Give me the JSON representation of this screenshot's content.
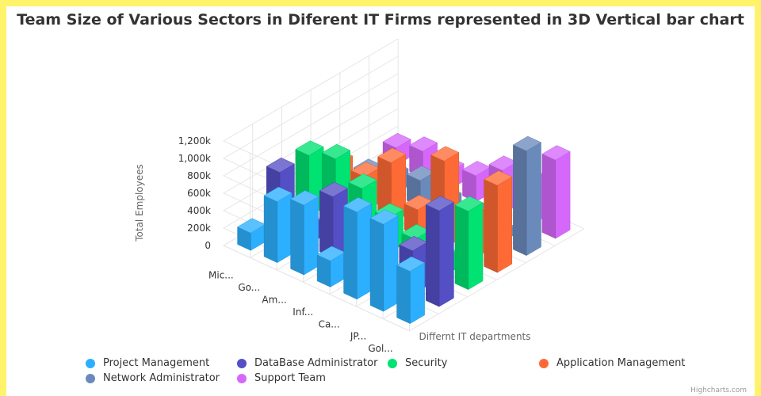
{
  "chart_data": {
    "type": "bar",
    "title": "Team Size of Various Sectors in Diferent IT Firms represented in 3D Vertical bar chart",
    "xlabel": "",
    "ylabel": "Total Employees",
    "zlabel": "Differnt IT departments",
    "ylim": [
      0,
      1200000
    ],
    "yticks": [
      "0",
      "200k",
      "400k",
      "600k",
      "800k",
      "1,000k",
      "1,200k"
    ],
    "categories": [
      "Mic...",
      "Go...",
      "Am...",
      "Inf...",
      "Ca...",
      "JP...",
      "Gol..."
    ],
    "series": [
      {
        "name": "Project Management",
        "color": "#2caffe",
        "values": [
          200000,
          700000,
          800000,
          300000,
          1000000,
          1000000,
          600000
        ]
      },
      {
        "name": "DataBase Administrator",
        "color": "#544fc5",
        "values": [
          700000,
          200000,
          700000,
          400000,
          100000,
          500000,
          1100000
        ]
      },
      {
        "name": "Security",
        "color": "#00e272",
        "values": [
          700000,
          800000,
          600000,
          400000,
          300000,
          200000,
          900000
        ]
      },
      {
        "name": "Application Management",
        "color": "#fe6a35",
        "values": [
          400000,
          400000,
          700000,
          300000,
          1000000,
          500000,
          1000000
        ]
      },
      {
        "name": "Network Administrator",
        "color": "#6b8abc",
        "values": [
          100000,
          200000,
          300000,
          200000,
          200000,
          100000,
          1200000
        ]
      },
      {
        "name": "Support Team",
        "color": "#d568fb",
        "values": [
          200000,
          300000,
          200000,
          300000,
          500000,
          500000,
          900000
        ]
      }
    ],
    "legend_position": "bottom",
    "grid": true
  },
  "credit": "Highcharts.com"
}
